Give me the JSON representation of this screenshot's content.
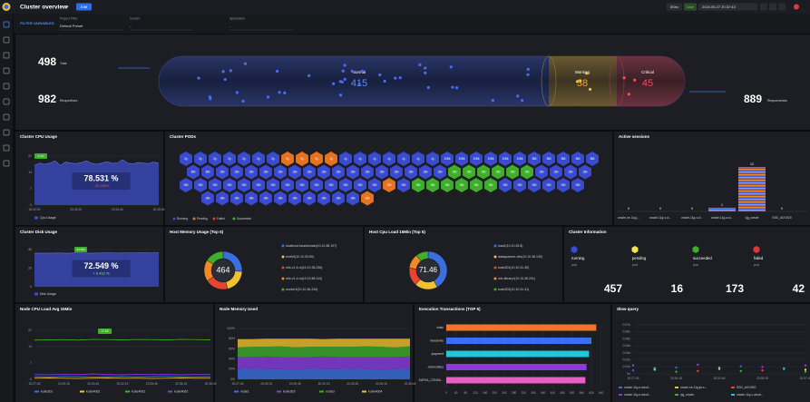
{
  "header": {
    "title": "Cluster overview",
    "edit_button": "Edit",
    "refresh": "5Sec",
    "live": "Live",
    "datetime": "2024.05.27 20:37:43"
  },
  "filters": {
    "label": "FILTER VARIABLES",
    "items": [
      {
        "name": "Project Filter",
        "value": "Default Preset"
      },
      {
        "name": "Cluster",
        "value": "-"
      },
      {
        "name": "Application",
        "value": "-"
      }
    ]
  },
  "overview": {
    "total": 498,
    "total_label": "Total",
    "request": 982,
    "request_label": "Request/sec",
    "normal_label": "Normal",
    "normal": 415,
    "warning_label": "Warning",
    "warning": 38,
    "critical_label": "Critical",
    "critical": 45,
    "response": 889,
    "response_label": "Response/sec"
  },
  "cpu_usage": {
    "title": "Cluster CPU Usage",
    "value": "78.531 %",
    "change": "- 25.285%",
    "badge": "17.81",
    "legend": "Cpu Usage",
    "color": "#3c4ec9",
    "ylim": [
      0,
      21
    ],
    "yticks": [
      0,
      7,
      14,
      21
    ],
    "categories": [
      "20:32:00",
      null,
      null,
      null,
      null,
      null,
      null,
      null,
      "20:33:15",
      null,
      null,
      null,
      null,
      null,
      null,
      null,
      "20:34:30",
      null,
      null,
      null,
      null,
      null,
      null,
      null,
      "20:35:45"
    ],
    "values": [
      17,
      18,
      17.5,
      18,
      19,
      17,
      18.5,
      18,
      17.8,
      18.2,
      19,
      18,
      17.5,
      18,
      18.6,
      17.9,
      18,
      19.5,
      18,
      17.6,
      18.3,
      18,
      17.8,
      18.4,
      18
    ]
  },
  "pods": {
    "title": "Cluster PODs",
    "legend": [
      {
        "name": "Running",
        "color": "#3a4bd0"
      },
      {
        "name": "Pending",
        "color": "#e8731f"
      },
      {
        "name": "Failed",
        "color": "#d93b3b"
      },
      {
        "name": "Succeeded",
        "color": "#3fae2a"
      }
    ],
    "rows": [
      {
        "labels": [
          "2y",
          "2y",
          "2y",
          "2y",
          "2y",
          "2y",
          "2y",
          "2y",
          "2y",
          "2y",
          "1y",
          "1y",
          "1y",
          "1y",
          "1y",
          "1y",
          "1y",
          "1y",
          "10M",
          "10M",
          "10M",
          "10M",
          "10M",
          "10M",
          "8M",
          "8M",
          "8M",
          "8M",
          "8M"
        ],
        "status": [
          "Running",
          "Running",
          "Running",
          "Running",
          "Running",
          "Running",
          "Running",
          "Pending",
          "Pending",
          "Pending",
          "Pending",
          "Running",
          "Running",
          "Running",
          "Running",
          "Running",
          "Running",
          "Running",
          "Running",
          "Running",
          "Running",
          "Running",
          "Running",
          "Running",
          "Running",
          "Running",
          "Running",
          "Running",
          "Running"
        ]
      },
      {
        "labels": [
          "8M",
          "8M",
          "3M",
          "3M",
          "3M",
          "3M",
          "3M",
          "3M",
          "3M",
          "3M",
          "3M",
          "3M",
          "3M",
          "3M",
          "3M",
          "3M",
          "3M",
          "3M",
          "3M",
          "3M",
          "3M",
          "3M",
          "3M",
          "3M",
          "3M",
          "3M",
          "3M",
          "3M"
        ],
        "status": [
          "Running",
          "Running",
          "Running",
          "Running",
          "Running",
          "Running",
          "Running",
          "Running",
          "Running",
          "Running",
          "Running",
          "Running",
          "Running",
          "Running",
          "Running",
          "Running",
          "Running",
          "Running",
          "Succeeded",
          "Succeeded",
          "Succeeded",
          "Succeeded",
          "Succeeded",
          "Succeeded",
          "Running",
          "Running",
          "Running",
          "Running"
        ]
      },
      {
        "labels": [
          "3M",
          "3M",
          "3M",
          "3M",
          "3M",
          "3M",
          "3M",
          "3M",
          "3M",
          "3M",
          "3M",
          "3M",
          "3M",
          "3M",
          "3M",
          "3M",
          "3M",
          "3M",
          "3M",
          "3M",
          "3M",
          "3M",
          "3M",
          "3M",
          "3M",
          "3M",
          "3M",
          "3M"
        ],
        "status": [
          "Running",
          "Running",
          "Running",
          "Running",
          "Running",
          "Running",
          "Running",
          "Running",
          "Running",
          "Running",
          "Running",
          "Running",
          "Running",
          "Running",
          "Pending",
          "Running",
          "Succeeded",
          "Succeeded",
          "Succeeded",
          "Succeeded",
          "Succeeded",
          "Succeeded",
          "Running",
          "Running",
          "Running",
          "Running",
          "Running",
          "Running"
        ]
      },
      {
        "labels": [
          "3M",
          "3M",
          "3M",
          "3M",
          "3M",
          "3M",
          "3M",
          "3M",
          "3M",
          "3M",
          "3M",
          "3M"
        ],
        "status": [
          "Running",
          "Running",
          "Running",
          "Running",
          "Running",
          "Running",
          "Running",
          "Running",
          "Running",
          "Running",
          "Running",
          "Pending"
        ]
      }
    ]
  },
  "sessions": {
    "title": "Active sessions",
    "categories": [
      "oracle-xe-11g.j...",
      "oracle-11g-s.cl...",
      "oracle-11g-s.cl...",
      "oracle-11g-a.cl...",
      "cjg_oracle",
      "SSG_AIX1920"
    ],
    "values": [
      0,
      0,
      0,
      1,
      12,
      0
    ],
    "ylim": [
      0,
      12
    ]
  },
  "disk_usage": {
    "title": "Cluster Disk Usage",
    "value": "72.549 %",
    "change": "+ 0.412 %",
    "badge": "36.589",
    "legend": "Disk Usage",
    "color": "#3c4ec9",
    "ylim": [
      0,
      40
    ],
    "yticks": [
      0,
      20,
      40
    ],
    "values": [
      36,
      36.2,
      36.1,
      36.3,
      36,
      36.4,
      36.2,
      36.1,
      36.3,
      36.5,
      36.2,
      36.4,
      36.3,
      36.6,
      36.4,
      36.5
    ]
  },
  "host_memory": {
    "title": "Host Memory Usage (Top 5)",
    "center": 464,
    "items": [
      {
        "name": "localhost.localdomain(10.10.38.107)",
        "color": "#3a6fe0",
        "value": 120
      },
      {
        "name": "emrh9(10.10.33.99)",
        "color": "#f2c12e",
        "value": 95
      },
      {
        "name": "mfc-v1-5-m(10.10.36.236)",
        "color": "#e8442f",
        "value": 90
      },
      {
        "name": "mfc-v1-4-m(10.10.58.110)",
        "color": "#f08a24",
        "value": 85
      },
      {
        "name": "worker3(10.10.36.234)",
        "color": "#3fae2a",
        "value": 74
      }
    ]
  },
  "host_cpu": {
    "title": "Host Cpu Load 15Min (Top 5)",
    "center": 71.46,
    "items": [
      {
        "name": "load1(10.10.33.8)",
        "color": "#3a6fe0",
        "value": 30
      },
      {
        "name": "dataspanner-dev(10.10.38.130)",
        "color": "#f2c12e",
        "value": 14
      },
      {
        "name": "kube301(10.10.31.35)",
        "color": "#e8442f",
        "value": 11
      },
      {
        "name": "mfc-library1(10.10.36.231)",
        "color": "#f08a24",
        "value": 9
      },
      {
        "name": "kube302(10.10.31.31)",
        "color": "#3fae2a",
        "value": 7.46
      }
    ]
  },
  "cluster_info": {
    "title": "Cluster Information",
    "items": [
      {
        "name": "running",
        "unit": "pod",
        "value": 457,
        "color": "#3a4bd0"
      },
      {
        "name": "pending",
        "unit": "pod",
        "value": 16,
        "color": "#f2e84a"
      },
      {
        "name": "succeeded",
        "unit": "pod",
        "value": 173,
        "color": "#3fae2a"
      },
      {
        "name": "failed",
        "unit": "pod",
        "value": 42,
        "color": "#d93b3b"
      }
    ]
  },
  "node_cpu": {
    "title": "Node CPU Load Avg 15Min",
    "tooltip": "17.05",
    "ylim": [
      0,
      21
    ],
    "yticks": [
      0,
      7,
      14,
      21
    ],
    "categories": [
      "20:27:45",
      null,
      "20:29:15",
      null,
      "20:30:45",
      null,
      "20:32:15",
      null,
      "20:33:45",
      null,
      "20:35:15",
      null,
      "20:36:45"
    ],
    "series": [
      {
        "name": "kube301",
        "color": "#3a6fe0",
        "values": [
          1.2,
          1.1,
          1.3,
          1.2,
          1.0,
          1.2,
          1.3,
          1.1,
          1.2,
          1.4,
          1.2,
          1.1,
          1.2
        ]
      },
      {
        "name": "kube4062",
        "color": "#f2c12e",
        "values": [
          0.5,
          0.6,
          0.5,
          0.4,
          0.5,
          0.6,
          0.5,
          0.5,
          0.4,
          0.5,
          0.6,
          0.5,
          0.5
        ]
      },
      {
        "name": "kube4061",
        "color": "#3fae2a",
        "values": [
          16.8,
          16.9,
          17,
          16.8,
          17.1,
          17,
          16.9,
          17.05,
          17,
          16.9,
          17.1,
          17,
          16.9
        ]
      },
      {
        "name": "kube4062",
        "color": "#8a3be0",
        "values": [
          2.1,
          2.0,
          2.2,
          2.1,
          2.3,
          2.1,
          2.0,
          2.2,
          2.1,
          2.2,
          2.0,
          2.1,
          2.2
        ]
      }
    ]
  },
  "node_memory": {
    "title": "Node Memory Used",
    "ylim": [
      0,
      100
    ],
    "yticks": [
      {
        "value": 0,
        "label": "0%"
      },
      {
        "value": 20,
        "label": "20%"
      },
      {
        "value": 40,
        "label": "40%"
      },
      {
        "value": 60,
        "label": "60%"
      },
      {
        "value": 80,
        "label": "80%"
      },
      {
        "value": 100,
        "label": "100%"
      }
    ],
    "categories": [
      "20:27:45",
      null,
      "20:29:15",
      null,
      "20:30:45",
      null,
      "20:32:15",
      null,
      "20:33:45",
      null,
      "20:35:15",
      null,
      "20:36:45"
    ],
    "series": [
      {
        "name": "node1",
        "color": "#3a6fe0",
        "values": [
          20,
          21,
          20,
          20,
          19,
          21,
          20,
          20,
          21,
          20,
          19,
          20,
          21
        ]
      },
      {
        "name": "kube303",
        "color": "#8a3be0",
        "values": [
          24,
          23,
          25,
          24,
          24,
          23,
          25,
          24,
          23,
          24,
          25,
          24,
          24
        ]
      },
      {
        "name": "node3",
        "color": "#3fae2a",
        "values": [
          19,
          20,
          19,
          21,
          20,
          20,
          19,
          20,
          20,
          21,
          20,
          19,
          20
        ]
      },
      {
        "name": "kube4064",
        "color": "#f2c12e",
        "values": [
          16,
          15,
          16,
          15,
          17,
          16,
          15,
          16,
          16,
          15,
          16,
          17,
          15
        ]
      }
    ]
  },
  "transactions": {
    "title": "Execution Transactions (TOP 5)",
    "categories": [
      "/main",
      "/newarrive",
      "/payment",
      "/orderstatus",
      "KAFKA_CONSU..."
    ],
    "values": [
      620,
      600,
      590,
      580,
      575
    ],
    "colors": [
      "#f0752a",
      "#3d6df2",
      "#25c4d9",
      "#8a3be0",
      "#e85fc4"
    ],
    "xlim": [
      0,
      660
    ],
    "xticks": [
      0,
      40,
      80,
      120,
      160,
      200,
      240,
      280,
      320,
      360,
      400,
      440,
      480,
      520,
      560,
      600,
      640
    ]
  },
  "slow_query": {
    "title": "Slow query",
    "ylim": [
      0,
      0.07
    ],
    "yticks": [
      {
        "value": 0,
        "label": "0s"
      },
      {
        "value": 0.01,
        "label": "0.01s"
      },
      {
        "value": 0.02,
        "label": "0.02s"
      },
      {
        "value": 0.03,
        "label": "0.03s"
      },
      {
        "value": 0.04,
        "label": "0.04s"
      },
      {
        "value": 0.05,
        "label": "0.05s"
      },
      {
        "value": 0.06,
        "label": "0.06s"
      },
      {
        "value": 0.07,
        "label": "0.07s"
      }
    ],
    "categories": [
      "20:27:45",
      null,
      "20:30:15",
      null,
      "20:32:45",
      null,
      "20:35:15",
      null,
      "20:37:45"
    ],
    "series": [
      {
        "name": "oracle-11g-s.cloud...",
        "color": "#3a6fe0",
        "values": [
          0.012,
          null,
          0.009,
          null,
          null,
          0.011,
          null,
          0.008,
          null
        ]
      },
      {
        "name": "oracle-xe-11g.jw-s...",
        "color": "#f2c12e",
        "values": [
          null,
          0.006,
          null,
          null,
          0.007,
          null,
          null,
          null,
          0.006
        ]
      },
      {
        "name": "SSG_AIX1920",
        "color": "#e8442f",
        "values": [
          null,
          null,
          null,
          0.004,
          null,
          null,
          0.005,
          null,
          null
        ]
      },
      {
        "name": "oracle-11g-s.cloud...",
        "color": "#8a3be0",
        "values": [
          0.005,
          null,
          null,
          0.013,
          null,
          null,
          0.01,
          null,
          0.012
        ]
      },
      {
        "name": "cjg_oracle",
        "color": "#3fae2a",
        "values": [
          null,
          null,
          0.003,
          null,
          null,
          0.004,
          null,
          null,
          0.003
        ]
      },
      {
        "name": "oracle-11g-c.cloud...",
        "color": "#25c4d9",
        "values": [
          null,
          0.008,
          null,
          null,
          0.009,
          null,
          null,
          0.007,
          null
        ]
      }
    ]
  }
}
